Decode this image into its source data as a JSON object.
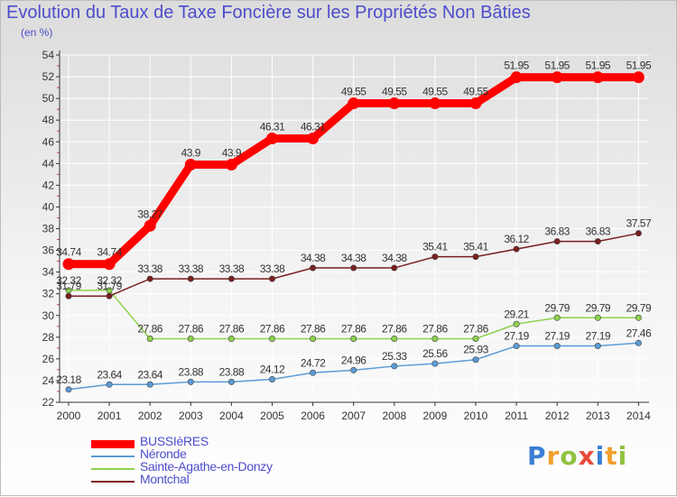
{
  "title": "Evolution du Taux de Taxe Foncière sur les Propriétés Non Bâties",
  "unit_label": "(en %)",
  "logo": "Proxiti",
  "colors": {
    "axis": "#333333",
    "grid": "#ffffff",
    "tick_mark": "#d84040",
    "text_primary": "#4d4dcc"
  },
  "chart_data": {
    "type": "line",
    "title": "Evolution du Taux de Taxe Foncière sur les Propriétés Non Bâties",
    "ylabel": "(en %)",
    "xlabel": "",
    "x": [
      "2000",
      "2001",
      "2002",
      "2003",
      "2004",
      "2005",
      "2006",
      "2007",
      "2008",
      "2009",
      "2010",
      "2011",
      "2012",
      "2013",
      "2014"
    ],
    "ylim": [
      22,
      54
    ],
    "yticks": [
      22,
      24,
      26,
      28,
      30,
      32,
      34,
      36,
      38,
      40,
      42,
      44,
      46,
      48,
      50,
      52,
      54
    ],
    "grid": true,
    "legend_position": "bottom-left",
    "series": [
      {
        "name": "BUSSIèRES",
        "color": "#ff0000",
        "values": [
          34.74,
          34.74,
          38.27,
          43.9,
          43.9,
          46.31,
          46.31,
          49.55,
          49.55,
          49.55,
          49.55,
          51.95,
          51.95,
          51.95,
          51.95
        ],
        "labels": [
          "34.74",
          "34.74",
          "38.27",
          "43.9",
          "43.9",
          "46.31",
          "46.31",
          "49.55",
          "49.55",
          "49.55",
          "49.55",
          "51.95",
          "51.95",
          "51.95",
          "51.95"
        ]
      },
      {
        "name": "Néronde",
        "color": "#5b9bd5",
        "values": [
          23.18,
          23.64,
          23.64,
          23.88,
          23.88,
          24.12,
          24.72,
          24.96,
          25.33,
          25.56,
          25.93,
          27.19,
          27.19,
          27.19,
          27.46
        ],
        "labels": [
          "23.18",
          "23.64",
          "23.64",
          "23.88",
          "23.88",
          "24.12",
          "24.72",
          "24.96",
          "25.33",
          "25.56",
          "25.93",
          "27.19",
          "27.19",
          "27.19",
          "27.46"
        ]
      },
      {
        "name": "Sainte-Agathe-en-Donzy",
        "color": "#8fd14f",
        "values": [
          32.32,
          32.32,
          27.86,
          27.86,
          27.86,
          27.86,
          27.86,
          27.86,
          27.86,
          27.86,
          27.86,
          29.21,
          29.79,
          29.79,
          29.79
        ],
        "labels": [
          "32.32",
          "32.32",
          "27.86",
          "27.86",
          "27.86",
          "27.86",
          "27.86",
          "27.86",
          "27.86",
          "27.86",
          "27.86",
          "29.21",
          "29.79",
          "29.79",
          "29.79"
        ]
      },
      {
        "name": "Montchal",
        "color": "#7a1f1f",
        "values": [
          31.79,
          31.79,
          33.38,
          33.38,
          33.38,
          33.38,
          34.38,
          34.38,
          34.38,
          35.41,
          35.41,
          36.12,
          36.83,
          36.83,
          37.57
        ],
        "labels": [
          "31.79",
          "31.79",
          "33.38",
          "33.38",
          "33.38",
          "33.38",
          "34.38",
          "34.38",
          "34.38",
          "35.41",
          "35.41",
          "36.12",
          "36.83",
          "36.83",
          "37.57"
        ]
      }
    ]
  }
}
